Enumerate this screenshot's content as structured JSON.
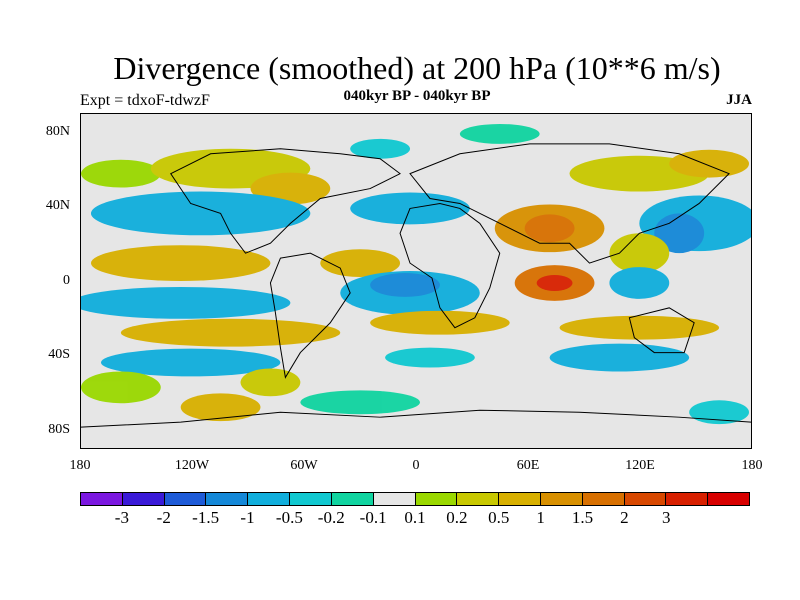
{
  "title": "Divergence (smoothed) at 200 hPa (10**6 m/s)",
  "subtitle_center": "040kyr BP - 040kyr BP",
  "subtitle_left": "Expt = tdxoF-tdwzF",
  "subtitle_right": "JJA",
  "y_axis_labels": [
    "80N",
    "40N",
    "0",
    "40S",
    "80S"
  ],
  "x_axis_labels": [
    "180",
    "120W",
    "60W",
    "0",
    "60E",
    "120E",
    "180"
  ],
  "colorbar": {
    "colors": [
      "#7b17e0",
      "#3a1ad8",
      "#1e5bd8",
      "#1488d8",
      "#10aedc",
      "#10c8d0",
      "#10d4a0",
      "#e6e6e6",
      "#9ad800",
      "#c8c800",
      "#d8b000",
      "#d89000",
      "#d87000",
      "#d84800",
      "#d82000",
      "#d80000"
    ],
    "labels": [
      "-3",
      "-2",
      "-1.5",
      "-1",
      "-0.5",
      "-0.2",
      "-0.1",
      "0.1",
      "0.2",
      "0.5",
      "1",
      "1.5",
      "2",
      "3"
    ]
  }
}
